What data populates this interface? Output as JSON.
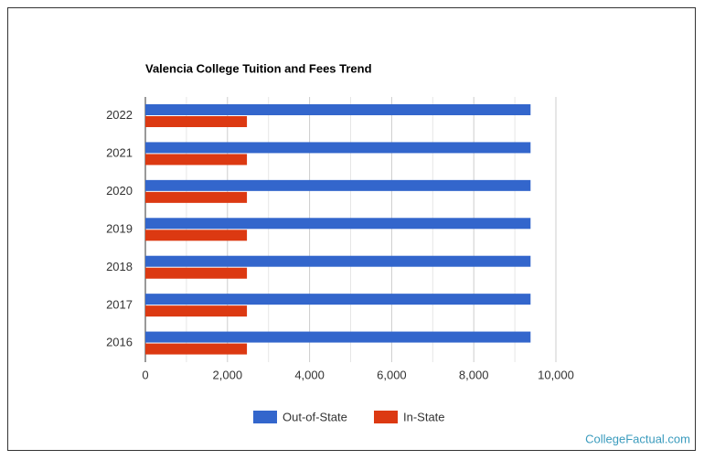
{
  "chart_data": {
    "type": "hbar",
    "title": "Valencia College Tuition and Fees Trend",
    "categories": [
      "2022",
      "2021",
      "2020",
      "2019",
      "2018",
      "2017",
      "2016"
    ],
    "series": [
      {
        "name": "Out-of-State",
        "color": "#3366cc",
        "values": [
          9383,
          9383,
          9383,
          9383,
          9383,
          9383,
          9383
        ]
      },
      {
        "name": "In-State",
        "color": "#dc3912",
        "values": [
          2474,
          2474,
          2474,
          2474,
          2474,
          2474,
          2474
        ]
      }
    ],
    "xlim": [
      0,
      10000
    ],
    "xticks": [
      0,
      {
        "value": 2000,
        "label": "2,000"
      },
      {
        "value": 4000,
        "label": "4,000"
      },
      {
        "value": 6000,
        "label": "6,000"
      },
      {
        "value": 8000,
        "label": "8,000"
      },
      {
        "value": 10000,
        "label": "10,000"
      }
    ],
    "minor_xticks": [
      1000,
      3000,
      5000,
      7000,
      9000
    ],
    "grid": true,
    "legend": "bottom",
    "watermark": "CollegeFactual.com"
  }
}
